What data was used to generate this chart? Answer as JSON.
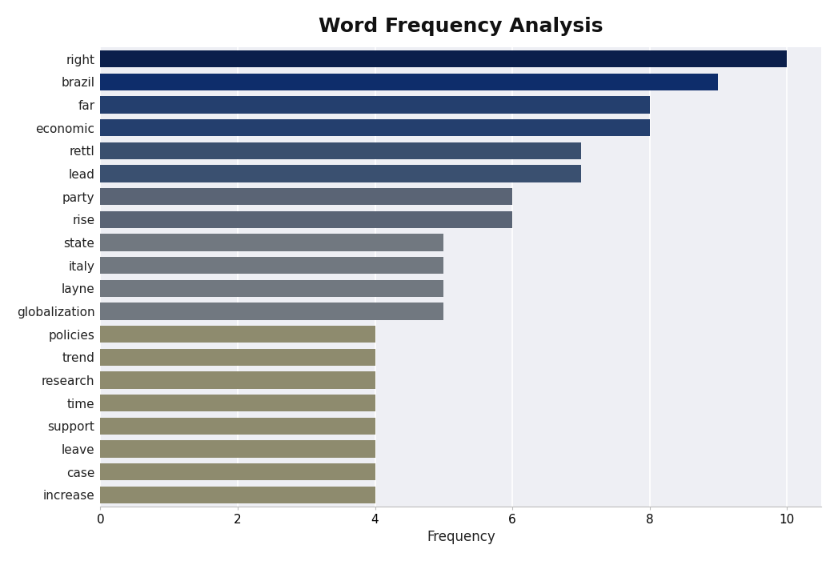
{
  "title": "Word Frequency Analysis",
  "xlabel": "Frequency",
  "categories": [
    "right",
    "brazil",
    "far",
    "economic",
    "rettl",
    "lead",
    "party",
    "rise",
    "state",
    "italy",
    "layne",
    "globalization",
    "policies",
    "trend",
    "research",
    "time",
    "support",
    "leave",
    "case",
    "increase"
  ],
  "values": [
    10,
    9,
    8,
    8,
    7,
    7,
    6,
    6,
    5,
    5,
    5,
    5,
    4,
    4,
    4,
    4,
    4,
    4,
    4,
    4
  ],
  "bar_colors": [
    "#0b1f4b",
    "#0e2d6b",
    "#243f6e",
    "#243f6e",
    "#3a4f6e",
    "#3a5070",
    "#5a6475",
    "#5a6475",
    "#717880",
    "#717880",
    "#717880",
    "#717880",
    "#8e8b6e",
    "#8e8b6e",
    "#8e8b6e",
    "#8e8b6e",
    "#8e8b6e",
    "#8e8b6e",
    "#8e8b6e",
    "#8e8b6e"
  ],
  "xlim": [
    0,
    10.5
  ],
  "plot_bg_color": "#eeeff4",
  "fig_bg_color": "#ffffff",
  "title_fontsize": 18,
  "label_fontsize": 12,
  "tick_fontsize": 11,
  "bar_height": 0.75
}
